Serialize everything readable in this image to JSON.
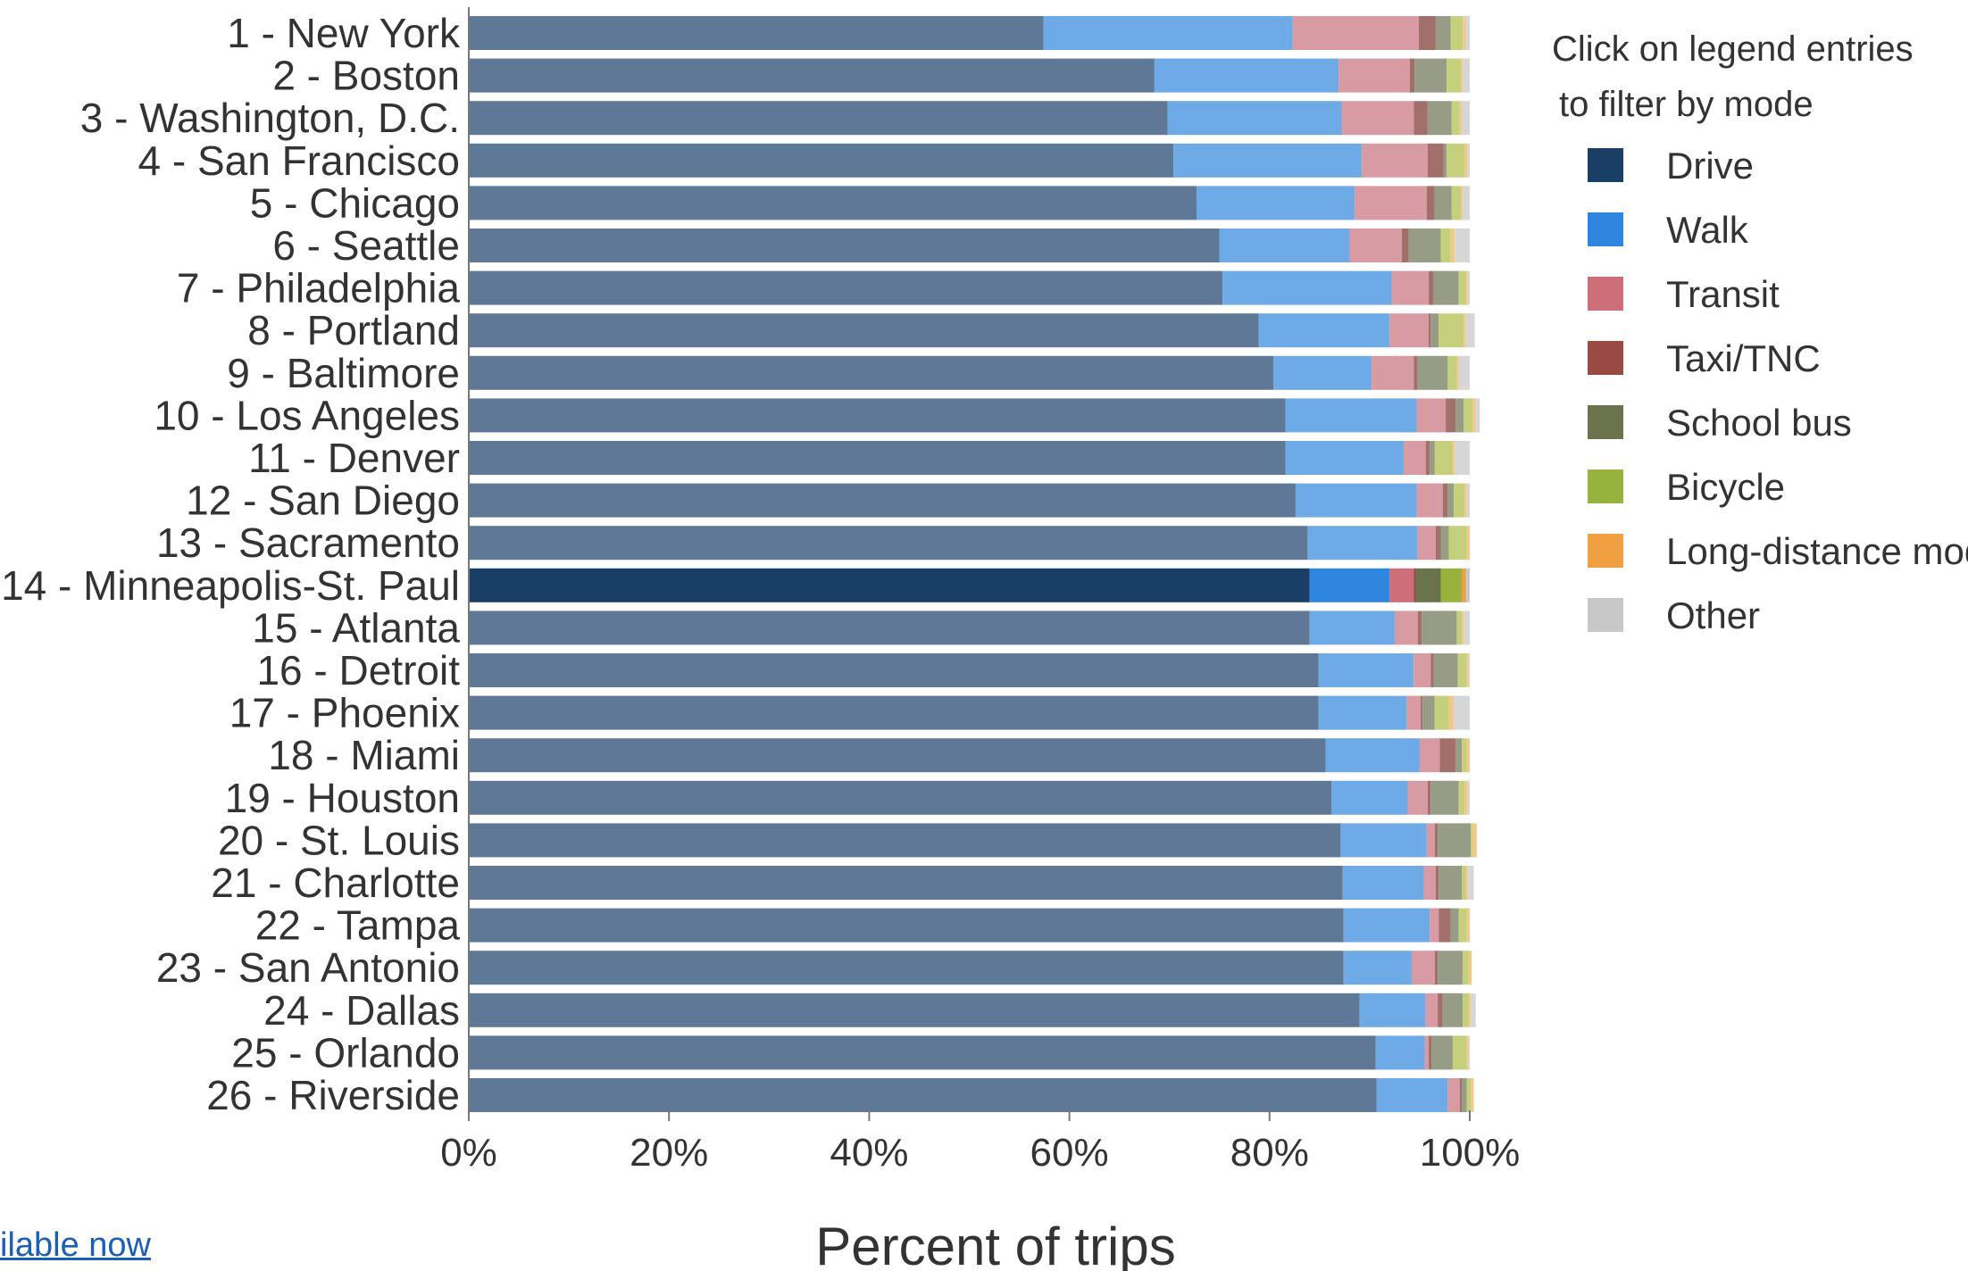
{
  "footer": {
    "link_text": "ilable now"
  },
  "chart_data": {
    "type": "bar",
    "orientation": "horizontal",
    "stacked": true,
    "xlabel": "Percent of trips",
    "xlim": [
      0,
      100
    ],
    "xticks": [
      "0%",
      "20%",
      "40%",
      "60%",
      "80%",
      "100%"
    ],
    "highlighted_category": "14 - Minneapolis-St. Paul",
    "legend": {
      "title_line1": "Click on legend entries",
      "title_line2": "to filter by mode",
      "placement": "right"
    },
    "categories": [
      "1 - New York",
      "2 - Boston",
      "3 - Washington, D.C.",
      "4 - San Francisco",
      "5 - Chicago",
      "6 - Seattle",
      "7 - Philadelphia",
      "8 - Portland",
      "9 - Baltimore",
      "10 - Los Angeles",
      "11 - Denver",
      "12 - San Diego",
      "13 - Sacramento",
      "14 - Minneapolis-St. Paul",
      "15 - Atlanta",
      "16 - Detroit",
      "17 - Phoenix",
      "18 - Miami",
      "19 - Houston",
      "20 - St. Louis",
      "21 - Charlotte",
      "22 - Tampa",
      "23 - San Antonio",
      "24 - Dallas",
      "25 - Orlando",
      "26 - Riverside"
    ],
    "series": [
      {
        "name": "Drive",
        "color": "#1a3f66",
        "dimmed_color": "#5f7895",
        "values": [
          57.4,
          68.5,
          69.8,
          70.4,
          72.7,
          75.0,
          75.3,
          78.9,
          80.4,
          81.6,
          81.6,
          82.6,
          83.8,
          84.0,
          84.0,
          84.9,
          84.9,
          85.6,
          86.2,
          87.1,
          87.3,
          87.4,
          87.4,
          89.0,
          90.6,
          90.7
        ]
      },
      {
        "name": "Walk",
        "color": "#2e86de",
        "dimmed_color": "#6eaae5",
        "values": [
          24.9,
          18.4,
          17.4,
          18.8,
          15.8,
          13.0,
          16.9,
          13.1,
          9.8,
          13.1,
          11.8,
          12.1,
          11.0,
          8.0,
          8.5,
          9.5,
          8.8,
          9.4,
          7.6,
          8.6,
          8.1,
          8.6,
          6.8,
          6.6,
          4.9,
          7.1
        ]
      },
      {
        "name": "Transit",
        "color": "#cd6e78",
        "dimmed_color": "#d99ba3",
        "values": [
          12.6,
          7.1,
          7.2,
          6.6,
          7.2,
          5.2,
          3.7,
          3.9,
          4.2,
          2.9,
          2.2,
          2.6,
          1.8,
          2.4,
          2.3,
          1.7,
          1.4,
          2.0,
          2.0,
          0.8,
          1.2,
          0.9,
          2.3,
          1.2,
          0.4,
          1.2
        ]
      },
      {
        "name": "Taxi/TNC",
        "color": "#9a4a42",
        "dimmed_color": "#a2706a",
        "values": [
          1.7,
          0.5,
          1.4,
          1.6,
          0.8,
          0.7,
          0.5,
          0.2,
          0.4,
          1.0,
          0.4,
          0.5,
          0.5,
          0.2,
          0.4,
          0.3,
          0.2,
          1.6,
          0.3,
          0.3,
          0.3,
          1.2,
          0.3,
          0.5,
          0.3,
          0.2
        ]
      },
      {
        "name": "School bus",
        "color": "#6a734c",
        "dimmed_color": "#979c86",
        "values": [
          1.5,
          3.2,
          2.4,
          0.3,
          1.7,
          3.2,
          2.5,
          0.8,
          3.0,
          0.8,
          0.5,
          0.6,
          0.8,
          2.5,
          3.5,
          2.4,
          1.2,
          0.6,
          2.8,
          3.3,
          2.3,
          0.8,
          2.5,
          2.0,
          2.1,
          0.5
        ]
      },
      {
        "name": "Bicycle",
        "color": "#98b33d",
        "dimmed_color": "#c5d07c",
        "values": [
          1.2,
          1.4,
          0.8,
          1.8,
          0.9,
          1.0,
          0.7,
          2.5,
          0.9,
          0.9,
          1.8,
          1.1,
          1.8,
          2.1,
          0.5,
          0.9,
          1.4,
          0.5,
          0.6,
          0.2,
          0.4,
          0.8,
          0.6,
          0.6,
          1.4,
          0.4
        ]
      },
      {
        "name": "Long-distance mode",
        "color": "#f0a040",
        "dimmed_color": "#f3c98a",
        "values": [
          0.3,
          0.2,
          0.2,
          0.3,
          0.2,
          0.4,
          0.2,
          0.2,
          0.2,
          0.3,
          0.2,
          0.2,
          0.3,
          0.4,
          0.2,
          0.2,
          0.5,
          0.3,
          0.3,
          0.4,
          0.2,
          0.3,
          0.3,
          0.2,
          0.2,
          0.3
        ]
      },
      {
        "name": "Other",
        "color": "#c8c8c8",
        "dimmed_color": "#d6d6d6",
        "values": [
          0.4,
          0.7,
          0.8,
          0.2,
          0.7,
          1.5,
          0.2,
          0.9,
          1.1,
          0.4,
          1.5,
          0.3,
          0.0,
          0.4,
          0.6,
          0.1,
          1.6,
          0.0,
          0.2,
          0.0,
          0.6,
          0.0,
          0.0,
          0.5,
          0.1,
          0.0
        ]
      }
    ]
  }
}
